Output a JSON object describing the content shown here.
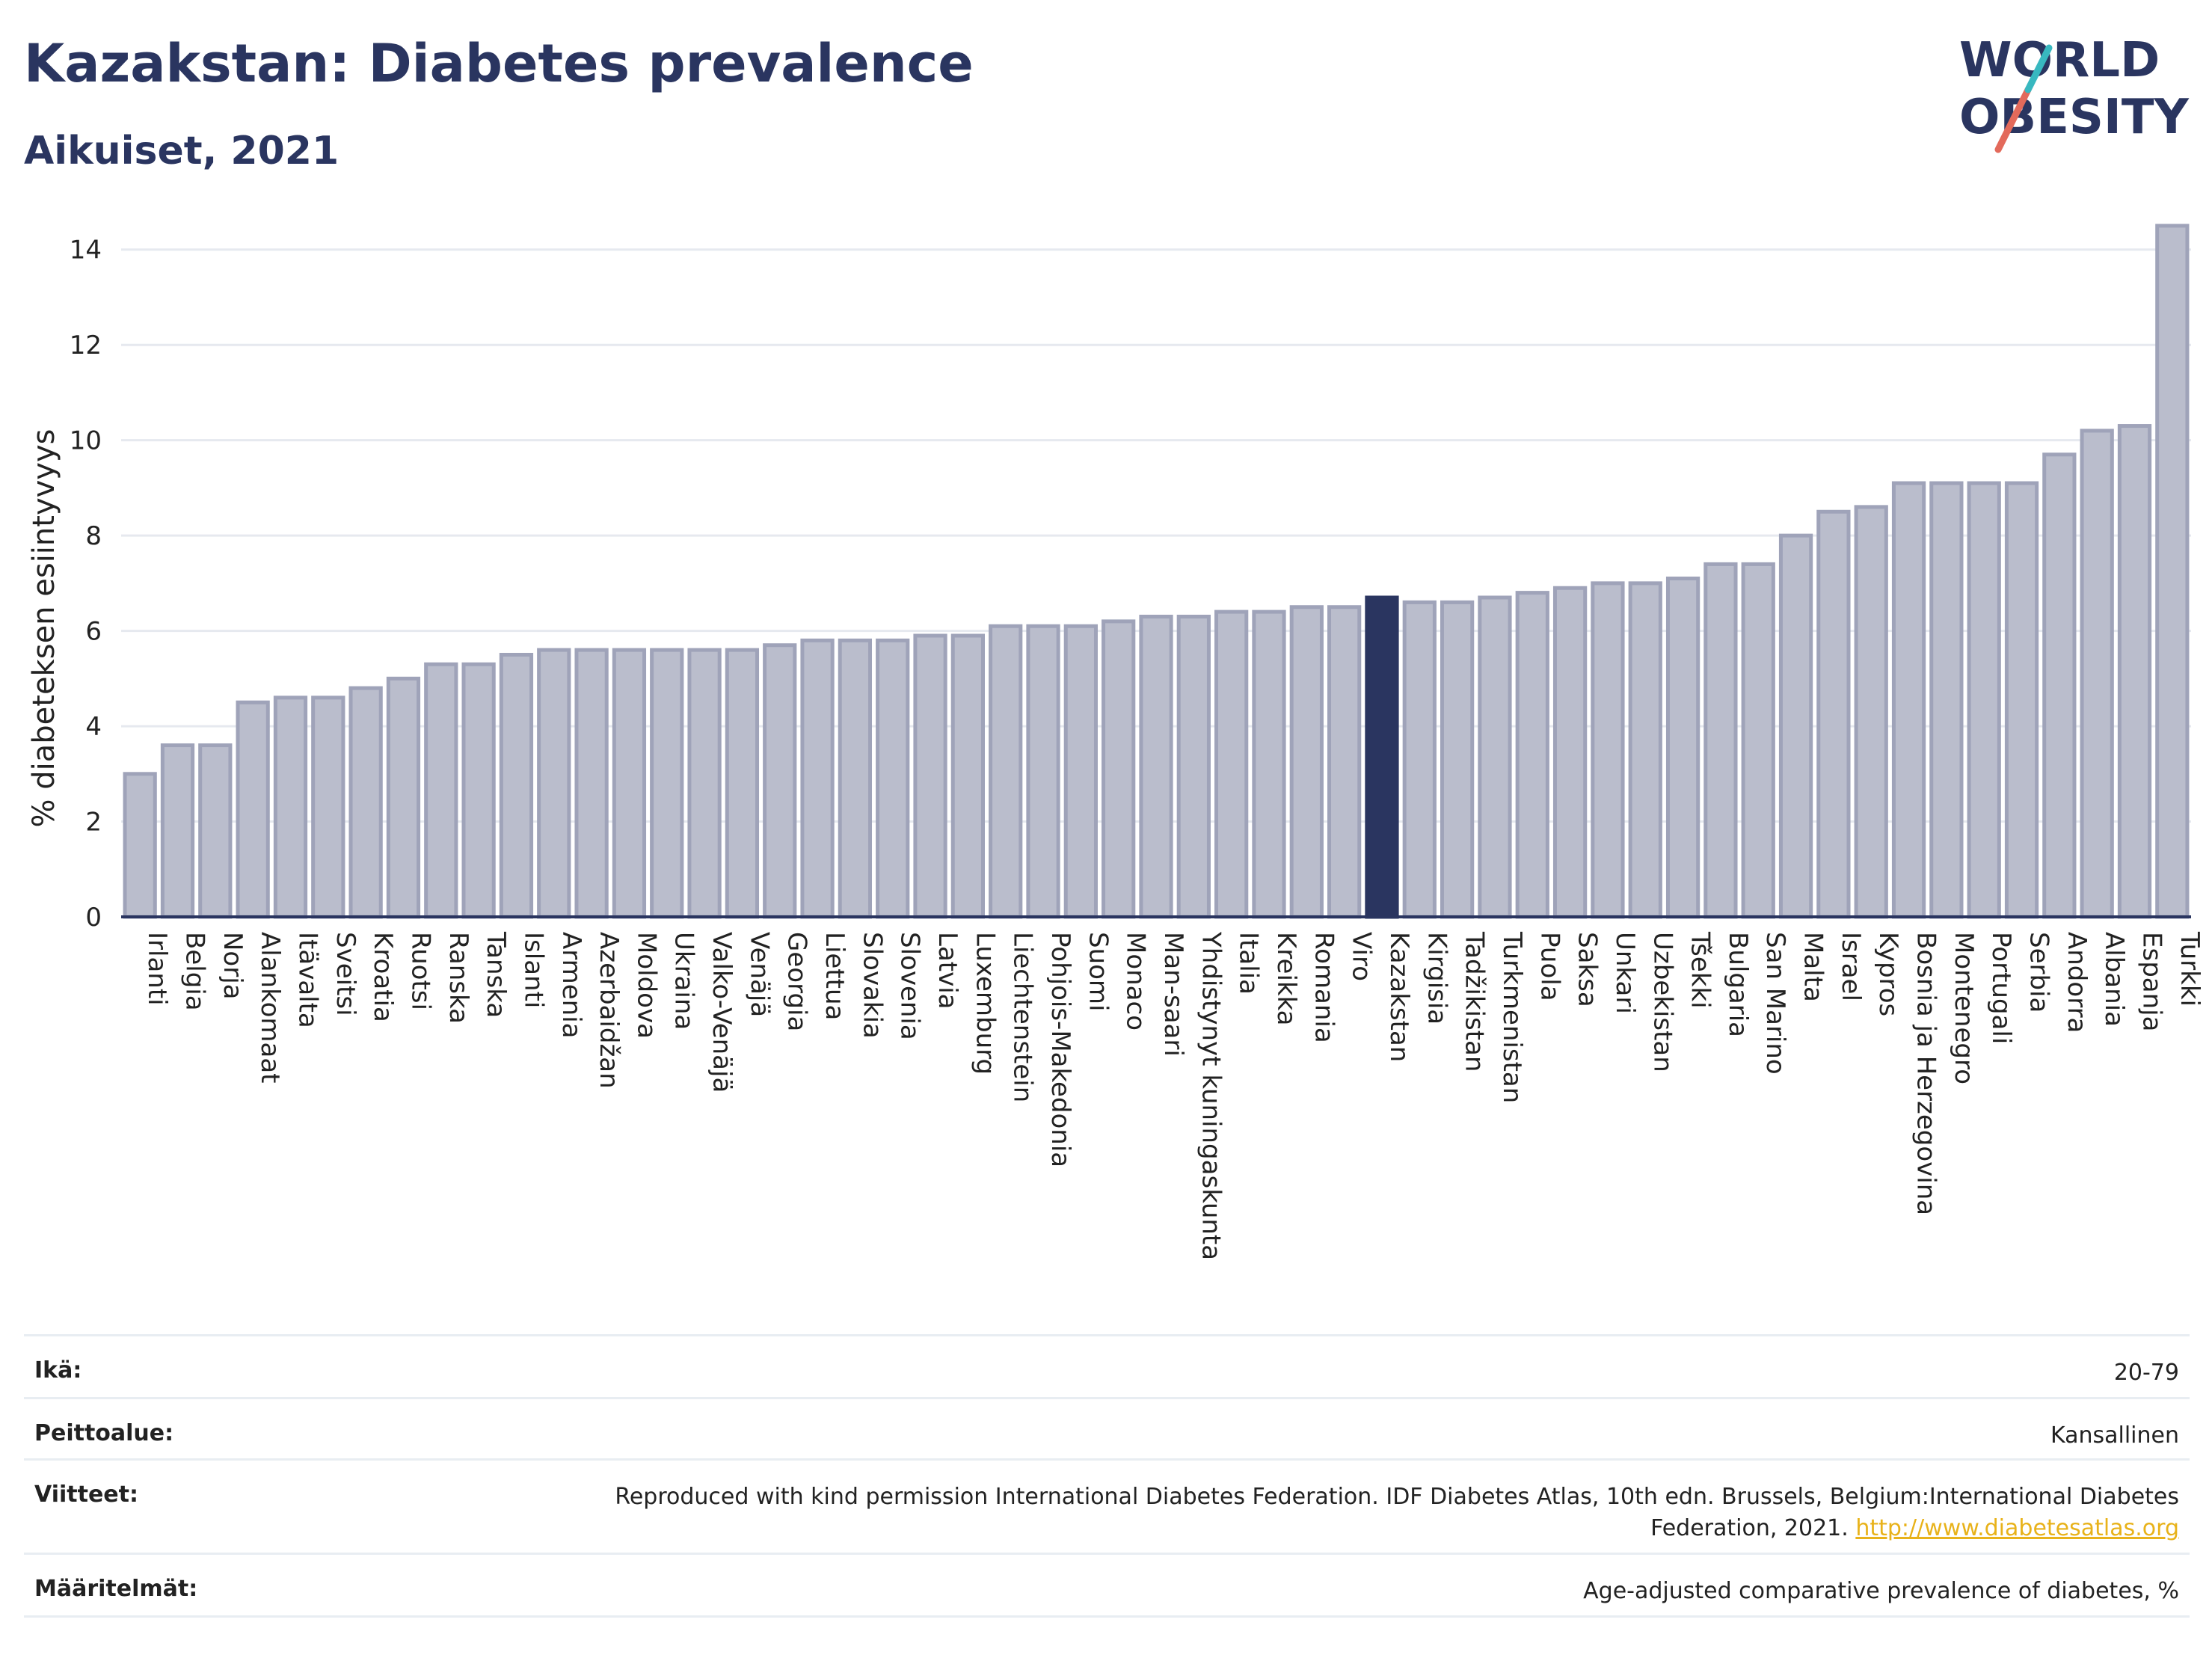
{
  "header": {
    "title": "Kazakstan: Diabetes prevalence",
    "subtitle": "Aikuiset, 2021",
    "logo_line1": "WORLD",
    "logo_line2": "OBESITY"
  },
  "colors": {
    "bar": "#babdcc",
    "bar_stroke": "#9fa3b9",
    "highlight": "#2a3560",
    "grid": "#e6e9ef",
    "accent_red": "#e36a5b",
    "accent_teal": "#38b8c0"
  },
  "chart_data": {
    "type": "bar",
    "title": "Kazakstan: Diabetes prevalence",
    "subtitle": "Aikuiset, 2021",
    "ylabel": "% diabeteksen esiintyvyys",
    "xlabel": "",
    "ylim": [
      0,
      15
    ],
    "yticks": [
      0,
      2,
      4,
      6,
      8,
      10,
      12,
      14
    ],
    "grid": true,
    "highlight": "Kazakstan",
    "categories": [
      "Irlanti",
      "Belgia",
      "Norja",
      "Alankomaat",
      "Itävalta",
      "Sveitsi",
      "Kroatia",
      "Ruotsi",
      "Ranska",
      "Tanska",
      "Islanti",
      "Armenia",
      "Azerbaidžan",
      "Moldova",
      "Ukraina",
      "Valko-Venäjä",
      "Venäjä",
      "Georgia",
      "Liettua",
      "Slovakia",
      "Slovenia",
      "Latvia",
      "Luxemburg",
      "Liechtenstein",
      "Pohjois-Makedonia",
      "Suomi",
      "Monaco",
      "Man-saari",
      "Yhdistynyt kuningaskunta",
      "Italia",
      "Kreikka",
      "Romania",
      "Viro",
      "Kazakstan",
      "Kirgisia",
      "Tadžikistan",
      "Turkmenistan",
      "Puola",
      "Saksa",
      "Unkari",
      "Uzbekistan",
      "Tšekki",
      "Bulgaria",
      "San Marino",
      "Malta",
      "Israel",
      "Kypros",
      "Bosnia ja Herzegovina",
      "Montenegro",
      "Portugali",
      "Serbia",
      "Andorra",
      "Albania",
      "Espanja",
      "Turkki"
    ],
    "values": [
      3.0,
      3.6,
      3.6,
      4.5,
      4.6,
      4.6,
      4.8,
      5.0,
      5.3,
      5.3,
      5.5,
      5.6,
      5.6,
      5.6,
      5.6,
      5.6,
      5.6,
      5.7,
      5.8,
      5.8,
      5.8,
      5.9,
      5.9,
      6.1,
      6.1,
      6.1,
      6.2,
      6.3,
      6.3,
      6.4,
      6.4,
      6.5,
      6.5,
      6.7,
      6.6,
      6.6,
      6.7,
      6.8,
      6.9,
      7.0,
      7.0,
      7.1,
      7.4,
      7.4,
      8.0,
      8.5,
      8.6,
      9.1,
      9.1,
      9.1,
      9.1,
      9.7,
      10.2,
      10.3,
      14.5
    ]
  },
  "meta": [
    {
      "key": "Ikä:",
      "value": "20-79"
    },
    {
      "key": "Peittoalue:",
      "value": "Kansallinen"
    },
    {
      "key": "Viitteet:",
      "value": "Reproduced with kind permission International Diabetes Federation.  IDF Diabetes Atlas, 10th edn. Brussels, Belgium:International Diabetes Federation, 2021.",
      "link": "http://www.diabetesatlas.org"
    },
    {
      "key": "Määritelmät:",
      "value": "Age-adjusted comparative prevalence of diabetes, %"
    }
  ]
}
